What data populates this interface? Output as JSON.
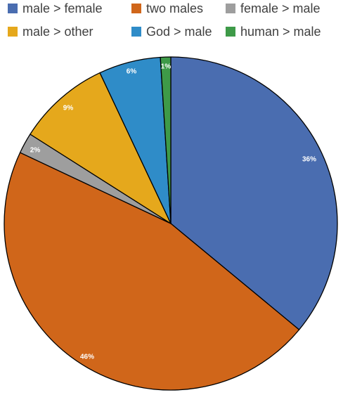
{
  "chart_data": {
    "type": "pie",
    "title": "",
    "series": [
      {
        "values": [
          36,
          46,
          2,
          9,
          6,
          1
        ],
        "labels": [
          "36%",
          "46%",
          "2%",
          "9%",
          "6%",
          "1%"
        ]
      }
    ],
    "categories": [
      "male > female",
      "two males",
      "female > male",
      "male > other",
      "God > male",
      "human > male"
    ],
    "colors": [
      "#4A6DB0",
      "#D0661A",
      "#9E9E9E",
      "#E5A81C",
      "#2F8CC8",
      "#3E9A48"
    ],
    "slice_outline": "#000000",
    "data_label_color": "#ffffff",
    "legend_position": "top",
    "start_angle": "12 o'clock",
    "direction": "clockwise"
  }
}
